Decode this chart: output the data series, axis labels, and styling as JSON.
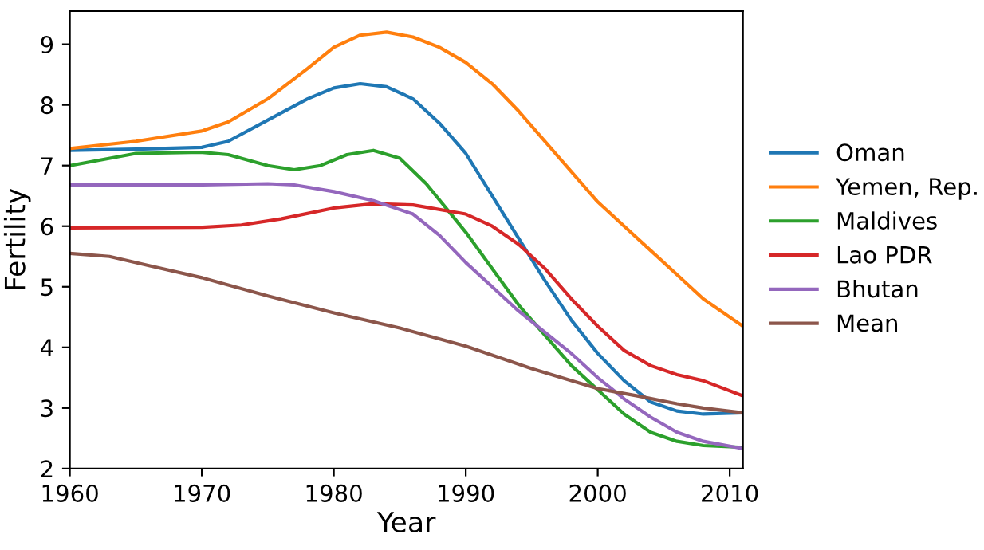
{
  "chart_data": {
    "type": "line",
    "xlabel": "Year",
    "ylabel": "Fertility",
    "x": [
      1960,
      1965,
      1970,
      1972,
      1975,
      1978,
      1980,
      1982,
      1984,
      1986,
      1988,
      1990,
      1992,
      1994,
      1996,
      1998,
      2000,
      2002,
      2004,
      2006,
      2008,
      2011
    ],
    "series": [
      {
        "name": "Oman",
        "color": "#1f77b4",
        "values": [
          7.25,
          7.27,
          7.3,
          7.4,
          7.75,
          8.1,
          8.28,
          8.35,
          8.3,
          8.1,
          7.7,
          7.2,
          6.5,
          5.8,
          5.1,
          4.45,
          3.9,
          3.45,
          3.1,
          2.95,
          2.9,
          2.92
        ]
      },
      {
        "name": "Yemen, Rep.",
        "color": "#ff7f0e",
        "values": [
          7.28,
          7.4,
          7.57,
          7.72,
          8.1,
          8.6,
          8.95,
          9.15,
          9.2,
          9.12,
          8.95,
          8.7,
          8.35,
          7.9,
          7.4,
          6.9,
          6.4,
          6.0,
          5.6,
          5.2,
          4.8,
          4.35
        ]
      },
      {
        "name": "Maldives",
        "color": "#2ca02c",
        "x": [
          1960,
          1965,
          1970,
          1972,
          1975,
          1977,
          1979,
          1981,
          1983,
          1985,
          1987,
          1990,
          1992,
          1994,
          1996,
          1998,
          2000,
          2002,
          2004,
          2006,
          2008,
          2011
        ],
        "values": [
          7.0,
          7.2,
          7.22,
          7.18,
          7.0,
          6.93,
          7.0,
          7.18,
          7.25,
          7.12,
          6.7,
          5.9,
          5.3,
          4.7,
          4.2,
          3.7,
          3.3,
          2.9,
          2.6,
          2.45,
          2.38,
          2.35
        ]
      },
      {
        "name": "Lao PDR",
        "color": "#d62728",
        "x": [
          1960,
          1970,
          1973,
          1976,
          1980,
          1983,
          1986,
          1990,
          1992,
          1994,
          1996,
          1998,
          2000,
          2002,
          2004,
          2006,
          2008,
          2011
        ],
        "values": [
          5.97,
          5.98,
          6.02,
          6.12,
          6.3,
          6.37,
          6.35,
          6.2,
          6.0,
          5.7,
          5.3,
          4.8,
          4.35,
          3.95,
          3.7,
          3.55,
          3.45,
          3.2
        ]
      },
      {
        "name": "Bhutan",
        "color": "#9467bd",
        "x": [
          1960,
          1970,
          1975,
          1977,
          1980,
          1983,
          1986,
          1988,
          1990,
          1992,
          1994,
          1996,
          1998,
          2000,
          2002,
          2004,
          2006,
          2008,
          2011
        ],
        "values": [
          6.68,
          6.68,
          6.7,
          6.68,
          6.57,
          6.42,
          6.2,
          5.85,
          5.4,
          5.0,
          4.6,
          4.25,
          3.9,
          3.5,
          3.15,
          2.85,
          2.6,
          2.45,
          2.33
        ]
      },
      {
        "name": "Mean",
        "color": "#8c564b",
        "x": [
          1960,
          1963,
          1966,
          1970,
          1975,
          1978,
          1980,
          1985,
          1990,
          1995,
          2000,
          2003,
          2006,
          2008,
          2011
        ],
        "values": [
          5.55,
          5.5,
          5.35,
          5.15,
          4.85,
          4.68,
          4.57,
          4.32,
          4.02,
          3.65,
          3.32,
          3.2,
          3.07,
          3.0,
          2.92
        ]
      }
    ],
    "xlim": [
      1960,
      2011
    ],
    "xticks": [
      1960,
      1970,
      1980,
      1990,
      2000,
      2010
    ],
    "ylim": [
      2,
      9.55
    ],
    "yticks": [
      2,
      3,
      4,
      5,
      6,
      7,
      8,
      9
    ],
    "legend": "right",
    "grid": false,
    "marker": "none",
    "line_style": "solid"
  }
}
